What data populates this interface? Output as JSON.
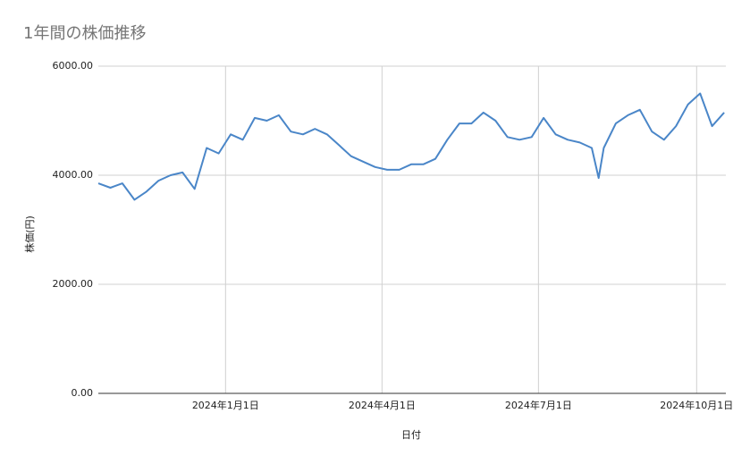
{
  "chart_data": {
    "type": "line",
    "title": "1年間の株価推移",
    "x_label": "日付",
    "y_label": "株価(円)",
    "x": [
      "2023-10-19",
      "2023-10-26",
      "2023-11-02",
      "2023-11-09",
      "2023-11-16",
      "2023-11-23",
      "2023-11-30",
      "2023-12-07",
      "2023-12-14",
      "2023-12-21",
      "2023-12-28",
      "2024-01-04",
      "2024-01-11",
      "2024-01-18",
      "2024-01-25",
      "2024-02-01",
      "2024-02-08",
      "2024-02-15",
      "2024-02-22",
      "2024-02-29",
      "2024-03-07",
      "2024-03-14",
      "2024-03-21",
      "2024-03-28",
      "2024-04-04",
      "2024-04-11",
      "2024-04-18",
      "2024-04-25",
      "2024-05-02",
      "2024-05-09",
      "2024-05-16",
      "2024-05-23",
      "2024-05-30",
      "2024-06-06",
      "2024-06-13",
      "2024-06-20",
      "2024-06-27",
      "2024-07-04",
      "2024-07-11",
      "2024-07-18",
      "2024-07-25",
      "2024-08-01",
      "2024-08-05",
      "2024-08-08",
      "2024-08-15",
      "2024-08-22",
      "2024-08-29",
      "2024-09-05",
      "2024-09-12",
      "2024-09-19",
      "2024-09-26",
      "2024-10-03",
      "2024-10-10",
      "2024-10-17"
    ],
    "series": [
      {
        "name": "株価",
        "color": "#4a86c8",
        "values": [
          3850,
          3770,
          3850,
          3550,
          3700,
          3900,
          4000,
          4050,
          3750,
          4500,
          4400,
          4750,
          4650,
          5050,
          5000,
          5100,
          4800,
          4750,
          4850,
          4750,
          4550,
          4350,
          4250,
          4150,
          4100,
          4100,
          4200,
          4200,
          4300,
          4650,
          4950,
          4950,
          5150,
          5000,
          4700,
          4650,
          4700,
          5050,
          4750,
          4650,
          4600,
          4500,
          3950,
          4500,
          4950,
          5100,
          5200,
          4800,
          4650,
          4900,
          5300,
          5500,
          4900,
          5150
        ]
      }
    ],
    "xlim": [
      "2023-10-19",
      "2024-10-18"
    ],
    "xticks": [
      {
        "value": "2024-01-01",
        "label": "2024年1月1日"
      },
      {
        "value": "2024-04-01",
        "label": "2024年4月1日"
      },
      {
        "value": "2024-07-01",
        "label": "2024年7月1日"
      },
      {
        "value": "2024-10-01",
        "label": "2024年10月1日"
      }
    ],
    "ylim": [
      0,
      6000
    ],
    "yticks": [
      {
        "value": 0,
        "label": "0.00"
      },
      {
        "value": 2000,
        "label": "2000.00"
      },
      {
        "value": 4000,
        "label": "4000.00"
      },
      {
        "value": 6000,
        "label": "6000.00"
      }
    ],
    "grid": true
  }
}
